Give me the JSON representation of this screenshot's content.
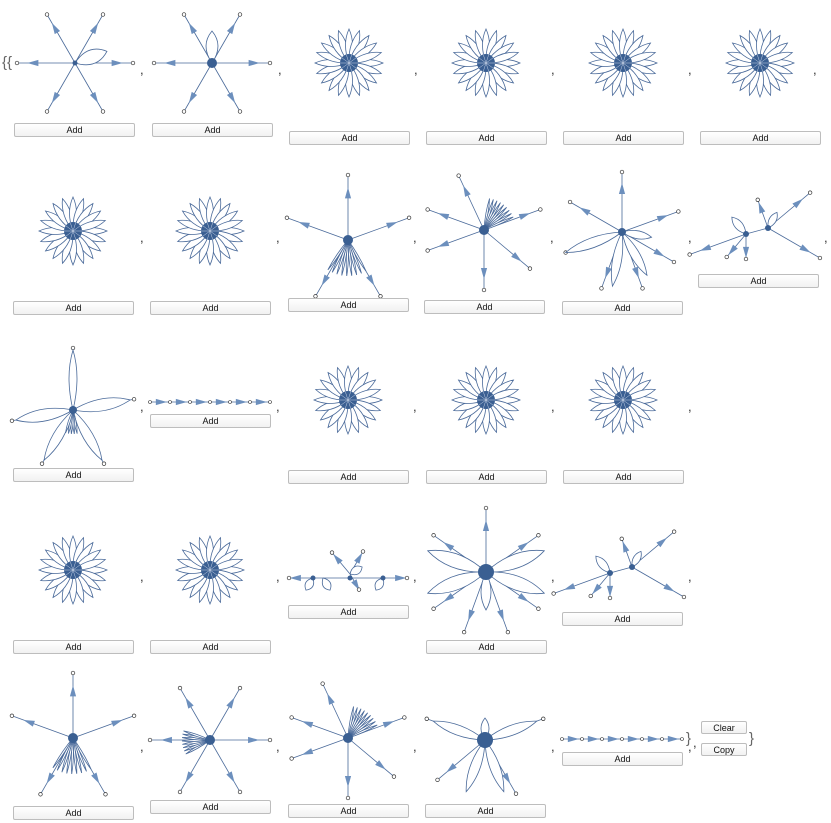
{
  "list": {
    "open_brace": "{{",
    "close_brace": "}",
    "outer_close_brace": "}",
    "separator": ","
  },
  "colors": {
    "edge": "#4a6a9a",
    "arrow": "#6c8fbd",
    "hub": "#3a5f92",
    "vertex": "#ffffff"
  },
  "cells": [
    {
      "kind": "star-loop",
      "button": "Add"
    },
    {
      "kind": "star-double-loop",
      "button": "Add"
    },
    {
      "kind": "flower",
      "button": "Add"
    },
    {
      "kind": "flower",
      "button": "Add"
    },
    {
      "kind": "flower",
      "button": "Add"
    },
    {
      "kind": "flower",
      "button": "Add"
    },
    {
      "kind": "flower",
      "button": "Add"
    },
    {
      "kind": "flower",
      "button": "Add"
    },
    {
      "kind": "star-fan-down",
      "button": "Add"
    },
    {
      "kind": "star-fan-up",
      "button": "Add"
    },
    {
      "kind": "star-petals",
      "button": "Add"
    },
    {
      "kind": "multi-hub",
      "button": "Add"
    },
    {
      "kind": "five-petal",
      "button": "Add"
    },
    {
      "kind": "path",
      "button": "Add"
    },
    {
      "kind": "flower",
      "button": "Add"
    },
    {
      "kind": "flower",
      "button": "Add"
    },
    {
      "kind": "flower",
      "button": "Add"
    },
    {
      "kind": "flower",
      "button": "Add"
    },
    {
      "kind": "flower",
      "button": "Add"
    },
    {
      "kind": "loops-chain",
      "button": "Add"
    },
    {
      "kind": "big-petals",
      "button": "Add"
    },
    {
      "kind": "multi-hub",
      "button": "Add"
    },
    {
      "kind": "star-fan-down",
      "button": "Add"
    },
    {
      "kind": "star-fan-left",
      "button": "Add"
    },
    {
      "kind": "star-fan-up",
      "button": "Add"
    },
    {
      "kind": "star-loop-petals",
      "button": "Add"
    },
    {
      "kind": "path",
      "button": "Add"
    }
  ],
  "controls": {
    "clear": "Clear",
    "copy": "Copy"
  }
}
